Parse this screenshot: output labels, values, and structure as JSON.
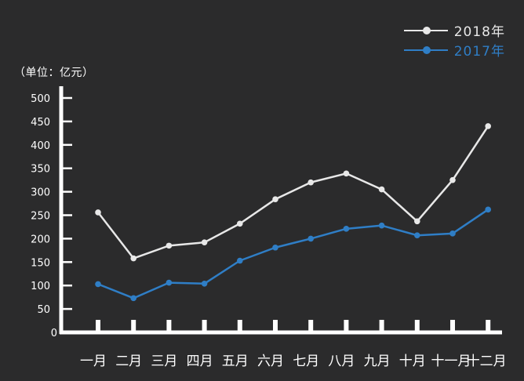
{
  "unit_label": "（单位：亿元）",
  "colors": {
    "background": "#2b2b2c",
    "axis": "#ffffff",
    "series_2018": "#e8e8e8",
    "series_2017": "#2f7ec6"
  },
  "chart_data": {
    "type": "line",
    "categories": [
      "一月",
      "二月",
      "三月",
      "四月",
      "五月",
      "六月",
      "七月",
      "八月",
      "九月",
      "十月",
      "十一月",
      "十二月"
    ],
    "yticks": [
      "0",
      "50",
      "100",
      "150",
      "200",
      "250",
      "300",
      "350",
      "400",
      "450",
      "500"
    ],
    "ylim": [
      0,
      500
    ],
    "grid": false,
    "legend_position": "top-right",
    "series": [
      {
        "name": "2018年",
        "color": "#e8e8e8",
        "values": [
          256,
          158,
          185,
          192,
          232,
          284,
          320,
          339,
          305,
          237,
          325,
          440
        ]
      },
      {
        "name": "2017年",
        "color": "#2f7ec6",
        "values": [
          103,
          73,
          106,
          104,
          153,
          181,
          200,
          221,
          228,
          207,
          211,
          262
        ]
      }
    ]
  }
}
